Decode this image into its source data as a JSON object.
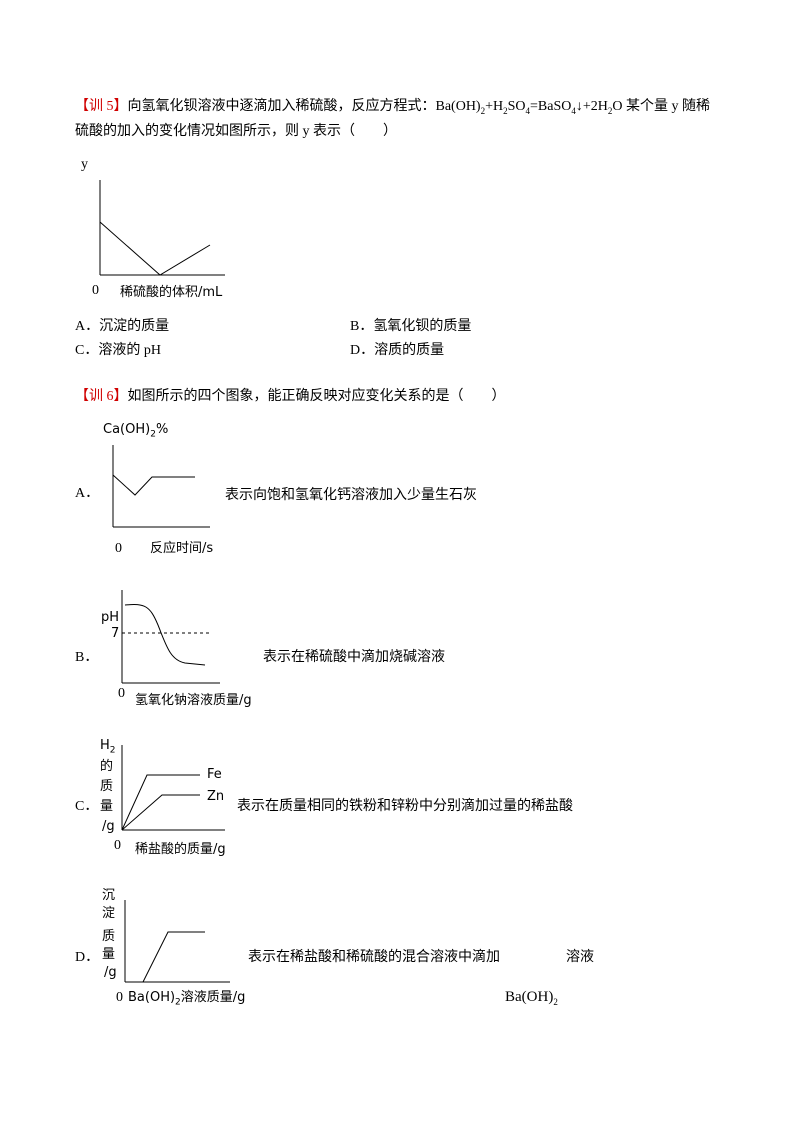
{
  "q5": {
    "label": "【训 5】",
    "stem": [
      "向氢氧化钡溶液中逐滴加入稀硫酸，反应方程式：Ba(OH)",
      "2",
      "+H",
      "2",
      "SO",
      "4",
      "=BaSO",
      "4",
      "↓+2H",
      "2",
      "O 某个量 y 随稀",
      "硫酸的加入的变化情况如图所示，则 y 表示（　　）"
    ],
    "graph": {
      "y_label": "y",
      "origin": "0",
      "x_label": "稀硫酸的体积/mL"
    },
    "options": [
      "A．沉淀的质量",
      "B．氢氧化钡的质量",
      "C．溶液的 pH",
      "D．溶质的质量"
    ]
  },
  "q6": {
    "label": "【训 6】",
    "stem": "如图所示的四个图象，能正确反映对应变化关系的是（　　）",
    "options": [
      {
        "letter": "A．",
        "y_label": [
          "Ca(OH)",
          "2",
          "%"
        ],
        "origin": "0",
        "x_label": "反应时间/s",
        "text": "表示向饱和氢氧化钙溶液加入少量生石灰"
      },
      {
        "letter": "B．",
        "y_label": "pH",
        "y_mark": "7",
        "origin": "0",
        "x_label": "氢氧化钠溶液质量/g",
        "text": "表示在稀硫酸中滴加烧碱溶液"
      },
      {
        "letter": "C．",
        "y_label": [
          "H",
          "2",
          "的",
          "质",
          "量",
          "/g"
        ],
        "curve_labels": [
          "Fe",
          "Zn"
        ],
        "origin": "0",
        "x_label": "稀盐酸的质量/g",
        "text": "表示在质量相同的铁粉和锌粉中分别滴加过量的稀盐酸"
      },
      {
        "letter": "D．",
        "y_label": [
          "沉",
          "淀",
          "质",
          "量",
          "/g"
        ],
        "origin": "0",
        "x_label": [
          "Ba(OH)",
          "2",
          "溶液质量/g"
        ],
        "text": "表示在稀盐酸和稀硫酸的混合溶液中滴加",
        "text_end": "溶液",
        "reagent": [
          "Ba(OH)",
          "2"
        ]
      }
    ]
  }
}
